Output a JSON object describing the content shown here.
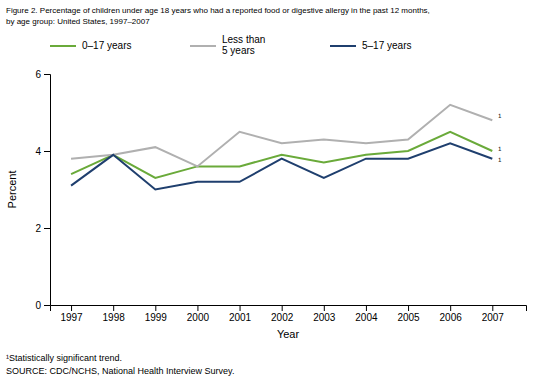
{
  "chart_data": {
    "type": "line",
    "title": "Figure 2. Percentage of children under age 18 years who had a reported food or digestive allergy in the past 12 months,",
    "subtitle": "by age group: United States, 1997–2007",
    "x_label": "Year",
    "y_label": "Percent",
    "x": [
      1997,
      1998,
      1999,
      2000,
      2001,
      2002,
      2003,
      2004,
      2005,
      2006,
      2007
    ],
    "series": [
      {
        "name": "0–17 years",
        "color": "#6aaa3a",
        "values": [
          3.4,
          3.9,
          3.3,
          3.6,
          3.6,
          3.9,
          3.7,
          3.9,
          4.0,
          4.5,
          4.0
        ]
      },
      {
        "name": "Less than\n5 years",
        "color": "#b0b0b0",
        "values": [
          3.8,
          3.9,
          4.1,
          3.6,
          4.5,
          4.2,
          4.3,
          4.2,
          4.3,
          5.2,
          4.8
        ]
      },
      {
        "name": "5–17 years",
        "color": "#1f3f6e",
        "values": [
          3.1,
          3.9,
          3.0,
          3.2,
          3.2,
          3.8,
          3.3,
          3.8,
          3.8,
          4.2,
          3.8
        ]
      }
    ],
    "xlim": [
      1996.5,
      2007.8
    ],
    "xticks": [
      1997,
      1998,
      1999,
      2000,
      2001,
      2002,
      2003,
      2004,
      2005,
      2006,
      2007
    ],
    "ylim": [
      0,
      6
    ],
    "yticks": [
      0,
      2,
      4,
      6
    ],
    "grid": false,
    "legend": "top",
    "annotations": [
      {
        "text": "¹",
        "x": 2007,
        "y": 4.0
      },
      {
        "text": "¹",
        "x": 2007,
        "y": 4.8
      },
      {
        "text": "¹",
        "x": 2007,
        "y": 3.8
      }
    ],
    "footnotes": [
      "¹Statistically significant trend.",
      "SOURCE: CDC/NCHS, National Health Interview Survey."
    ]
  }
}
